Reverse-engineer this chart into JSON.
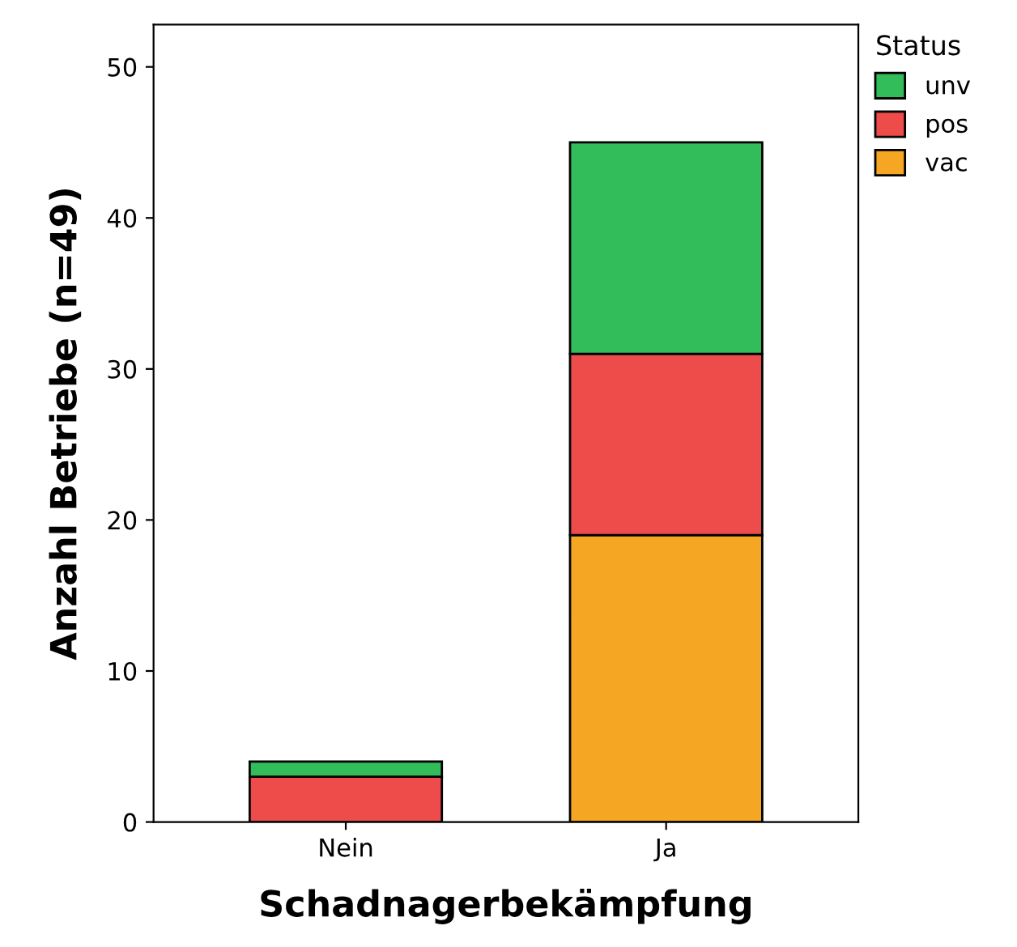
{
  "chart_data": {
    "type": "bar",
    "stacked": true,
    "xlabel": "Schadnagerbekämpfung",
    "ylabel": "Anzahl Betriebe (n=49)",
    "legend_title": "Status",
    "legend": "top right",
    "categories": [
      "Nein",
      "Ja"
    ],
    "series": [
      {
        "name": "vac",
        "color": "#f5a623",
        "values": [
          0,
          19
        ]
      },
      {
        "name": "pos",
        "color": "#ee4b4b",
        "values": [
          3,
          12
        ]
      },
      {
        "name": "unv",
        "color": "#33bd5a",
        "values": [
          1,
          14
        ]
      }
    ],
    "ylim": [
      0,
      52.8
    ],
    "yticks": [
      0,
      10,
      20,
      30,
      40,
      50
    ],
    "grid": false
  }
}
